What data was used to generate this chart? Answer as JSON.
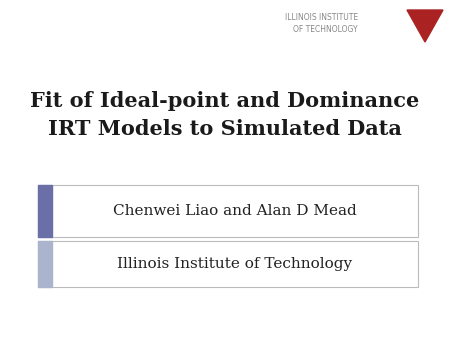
{
  "title_line1": "Fit of Ideal-point and Dominance",
  "title_line2": "IRT Models to Simulated Data",
  "author": "Chenwei Liao and Alan D Mead",
  "institution": "Illinois Institute of Technology",
  "iit_text_line1": "ILLINOIS INSTITUTE",
  "iit_text_line2": "OF TECHNOLOGY",
  "bg_color": "#ffffff",
  "title_color": "#1a1a1a",
  "author_color": "#222222",
  "inst_color": "#222222",
  "logo_text_color": "#888888",
  "box_border_color": "#bbbbbb",
  "box_bg_color": "#ffffff",
  "accent_bar1_color": "#6b6fa8",
  "accent_bar2_color": "#aab4cc",
  "triangle_color": "#aa2222",
  "title_fontsize": 15,
  "author_fontsize": 11,
  "inst_fontsize": 11,
  "logo_fontsize": 5.5
}
